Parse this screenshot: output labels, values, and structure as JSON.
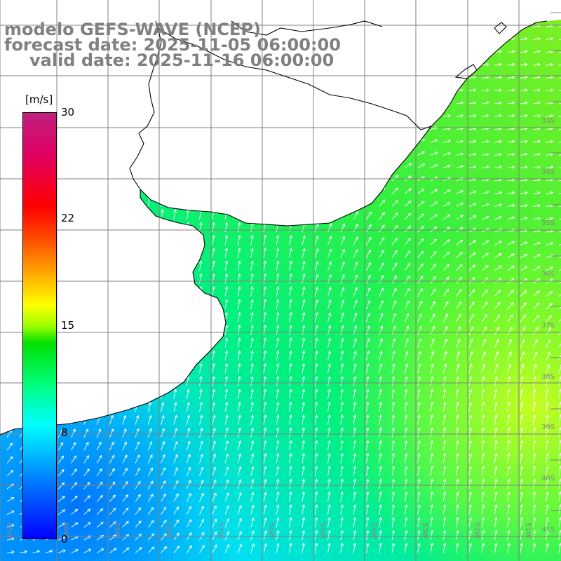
{
  "title": {
    "line1": "modelo GEFS-WAVE (NCEP)",
    "line2": "forecast date: 2025-11-05 06:00:00",
    "line3": "valid date: 2025-11-16 06:00:00"
  },
  "colorbar": {
    "unit": "[m/s]",
    "ticks": [
      "30",
      "22",
      "15",
      "8",
      "0"
    ],
    "tick_values": [
      30,
      22,
      15,
      8,
      0
    ]
  },
  "lat_labels": [
    "33S",
    "34S",
    "35S",
    "36S",
    "37S",
    "38S",
    "39S",
    "40S",
    "41S"
  ],
  "lon_labels": [
    "61W",
    "60W",
    "59W",
    "58W",
    "57W",
    "56W",
    "55W",
    "54W",
    "53W",
    "52W",
    "51W"
  ],
  "colors": {
    "land": "#ffffff",
    "coast": "#000000",
    "grid": "#808080",
    "arrows": "#ffffff"
  }
}
